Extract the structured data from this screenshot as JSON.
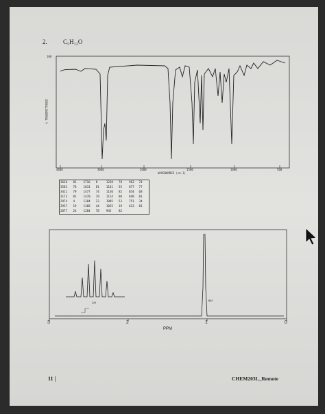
{
  "header": {
    "number": "2.",
    "formula": "C₅H₁₂O"
  },
  "ir_spectrum": {
    "y_top_label": "100",
    "y_axis_title": "% TRANSMITTANCE",
    "x_axis_title": "WAVENUMBER (cm-1)",
    "x_ticks": [
      "4000",
      "3000",
      "2000",
      "1500",
      "1000",
      "500"
    ]
  },
  "peak_table": {
    "rows": [
      [
        "3636",
        "81",
        "2716",
        "8",
        "1238",
        "78",
        "963",
        "74"
      ],
      [
        "3582",
        "78",
        "1631",
        "81",
        "1161",
        "55",
        "877",
        "77"
      ],
      [
        "3411",
        "79",
        "1477",
        "74",
        "1130",
        "82",
        "854",
        "68"
      ],
      [
        "3173",
        "81",
        "1470",
        "19",
        "1114",
        "80",
        "848",
        "81"
      ],
      [
        "2974",
        "4",
        "1384",
        "23",
        "1085",
        "53",
        "751",
        "34"
      ],
      [
        "2937",
        "19",
        "1368",
        "44",
        "1025",
        "19",
        "613",
        "81"
      ],
      [
        "2877",
        "24",
        "1284",
        "78",
        "945",
        "82"
      ]
    ]
  },
  "nmr_spectrum": {
    "x_ticks": [
      "3",
      "2",
      "1",
      "0"
    ],
    "x_axis_title": "PPM",
    "integrations": [
      "1H",
      "6H"
    ]
  },
  "footer": {
    "page": "11 |",
    "course": "CHEM203L_Remote"
  }
}
